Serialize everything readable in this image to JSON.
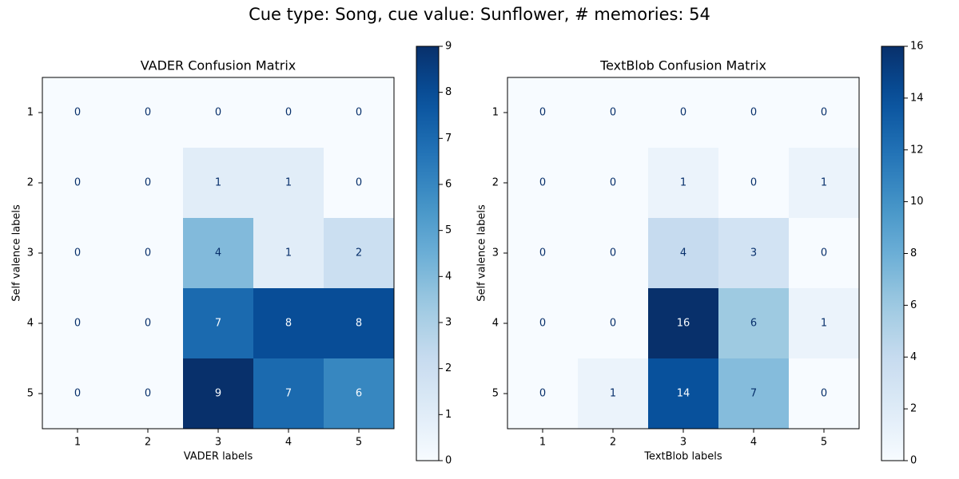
{
  "figure": {
    "suptitle": "Cue type: Song, cue value: Sunflower, # memories: 54"
  },
  "chart_data": [
    {
      "type": "heatmap",
      "title": "VADER Confusion Matrix",
      "xlabel": "VADER labels",
      "ylabel": "Self valence labels",
      "x_categories": [
        "1",
        "2",
        "3",
        "4",
        "5"
      ],
      "y_categories": [
        "1",
        "2",
        "3",
        "4",
        "5"
      ],
      "values": [
        [
          0,
          0,
          0,
          0,
          0
        ],
        [
          0,
          0,
          1,
          1,
          0
        ],
        [
          0,
          0,
          4,
          1,
          2
        ],
        [
          0,
          0,
          7,
          8,
          8
        ],
        [
          0,
          0,
          9,
          7,
          6
        ]
      ],
      "colormap": "Blues",
      "colorbar": {
        "min": 0,
        "max": 9,
        "ticks": [
          0,
          1,
          2,
          3,
          4,
          5,
          6,
          7,
          8,
          9
        ]
      }
    },
    {
      "type": "heatmap",
      "title": "TextBlob Confusion Matrix",
      "xlabel": "TextBlob labels",
      "ylabel": "Self valence labels",
      "x_categories": [
        "1",
        "2",
        "3",
        "4",
        "5"
      ],
      "y_categories": [
        "1",
        "2",
        "3",
        "4",
        "5"
      ],
      "values": [
        [
          0,
          0,
          0,
          0,
          0
        ],
        [
          0,
          0,
          1,
          0,
          1
        ],
        [
          0,
          0,
          4,
          3,
          0
        ],
        [
          0,
          0,
          16,
          6,
          1
        ],
        [
          0,
          1,
          14,
          7,
          0
        ]
      ],
      "colormap": "Blues",
      "colorbar": {
        "min": 0,
        "max": 16,
        "ticks": [
          0,
          2,
          4,
          6,
          8,
          10,
          12,
          14,
          16
        ]
      }
    }
  ]
}
